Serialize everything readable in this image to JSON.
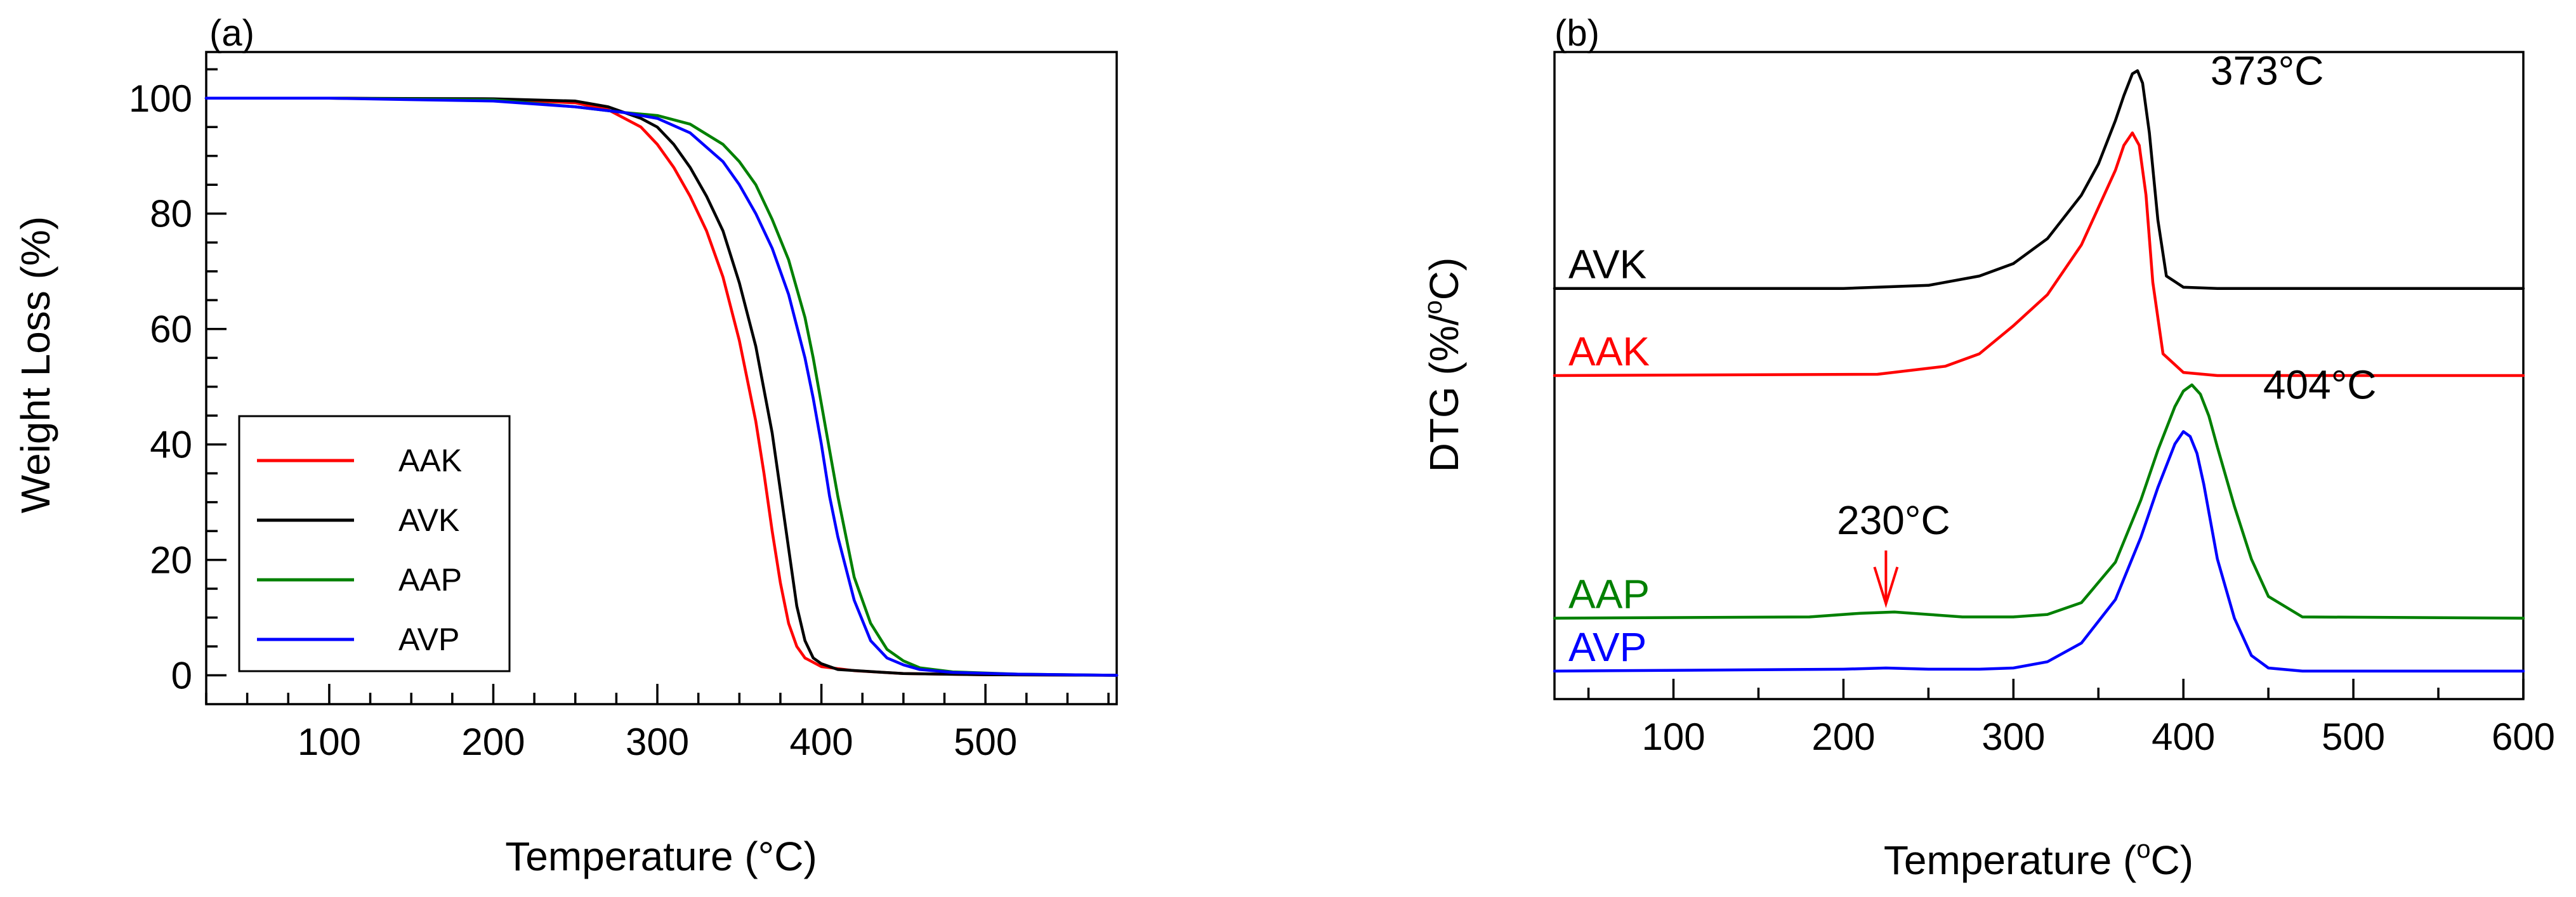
{
  "chart_data": [
    {
      "id": "a",
      "type": "line",
      "panel_label": "(a)",
      "xlabel": "Temperature (°C)",
      "ylabel": "Weight Loss (%)",
      "xlim": [
        25,
        580
      ],
      "ylim": [
        -5,
        108
      ],
      "xticks": [
        100,
        200,
        300,
        400,
        500
      ],
      "yticks": [
        0,
        20,
        40,
        60,
        80,
        100
      ],
      "legend_position": "lower-left",
      "series": [
        {
          "name": "AAK",
          "color": "#ff0000",
          "x": [
            25,
            100,
            200,
            250,
            270,
            290,
            300,
            310,
            320,
            330,
            340,
            350,
            360,
            365,
            370,
            375,
            380,
            385,
            390,
            400,
            420,
            450,
            500,
            580
          ],
          "y": [
            100,
            100,
            99.8,
            99.2,
            98,
            95,
            92,
            88,
            83,
            77,
            69,
            58,
            44,
            35,
            25,
            16,
            9,
            5,
            3,
            1.5,
            0.8,
            0.3,
            0.1,
            0
          ]
        },
        {
          "name": "AVK",
          "color": "#000000",
          "x": [
            25,
            100,
            200,
            250,
            270,
            290,
            300,
            310,
            320,
            330,
            340,
            350,
            360,
            370,
            375,
            380,
            385,
            390,
            395,
            400,
            410,
            450,
            500,
            580
          ],
          "y": [
            100,
            100,
            99.9,
            99.5,
            98.5,
            96.5,
            95,
            92,
            88,
            83,
            77,
            68,
            57,
            42,
            32,
            22,
            12,
            6,
            3,
            2,
            1,
            0.3,
            0.1,
            0
          ]
        },
        {
          "name": "AAP",
          "color": "#008000",
          "x": [
            25,
            100,
            200,
            250,
            280,
            300,
            320,
            340,
            350,
            360,
            370,
            380,
            390,
            395,
            400,
            405,
            410,
            415,
            420,
            430,
            440,
            450,
            460,
            480,
            520,
            580
          ],
          "y": [
            100,
            100,
            99.7,
            98.5,
            97.5,
            97,
            95.5,
            92,
            89,
            85,
            79,
            72,
            62,
            55,
            47,
            39,
            31,
            24,
            17,
            9,
            4.5,
            2.5,
            1.3,
            0.6,
            0.2,
            0
          ]
        },
        {
          "name": "AVP",
          "color": "#0000ff",
          "x": [
            25,
            100,
            200,
            250,
            280,
            300,
            320,
            340,
            350,
            360,
            370,
            380,
            390,
            395,
            400,
            405,
            410,
            420,
            430,
            440,
            450,
            460,
            480,
            520,
            580
          ],
          "y": [
            100,
            100,
            99.5,
            98.5,
            97.5,
            96.5,
            94,
            89,
            85,
            80,
            74,
            66,
            55,
            48,
            40,
            31,
            24,
            13,
            6,
            3,
            1.8,
            1,
            0.5,
            0.2,
            0
          ]
        }
      ]
    },
    {
      "id": "b",
      "type": "line",
      "panel_label": "(b)",
      "xlabel": "Temperature (",
      "xlabel_sup": "o",
      "xlabel_end": "C)",
      "ylabel": "DTG (%/",
      "ylabel_sup": "o",
      "ylabel_end": "C)",
      "xlim": [
        30,
        600
      ],
      "ylim": [
        -0.5,
        9.9
      ],
      "y_tick_labels_shown": false,
      "xticks": [
        100,
        200,
        300,
        400,
        500,
        600
      ],
      "series": [
        {
          "name": "AVK",
          "label": "AVK",
          "color": "#000000",
          "x": [
            30,
            200,
            250,
            280,
            300,
            320,
            340,
            350,
            360,
            365,
            370,
            373,
            376,
            380,
            385,
            390,
            400,
            420,
            600
          ],
          "y": [
            6.1,
            6.1,
            6.15,
            6.3,
            6.5,
            6.9,
            7.6,
            8.1,
            8.8,
            9.2,
            9.55,
            9.6,
            9.4,
            8.6,
            7.2,
            6.3,
            6.12,
            6.1,
            6.1
          ]
        },
        {
          "name": "AAK",
          "label": "AAK",
          "color": "#ff0000",
          "x": [
            30,
            220,
            260,
            280,
            300,
            320,
            340,
            350,
            360,
            365,
            370,
            374,
            378,
            382,
            388,
            400,
            420,
            600
          ],
          "y": [
            4.7,
            4.72,
            4.85,
            5.05,
            5.5,
            6.0,
            6.8,
            7.4,
            8.0,
            8.4,
            8.6,
            8.4,
            7.6,
            6.2,
            5.05,
            4.75,
            4.7,
            4.7
          ]
        },
        {
          "name": "AAP",
          "label": "AAP",
          "color": "#008000",
          "x": [
            30,
            180,
            210,
            230,
            250,
            270,
            300,
            320,
            340,
            360,
            375,
            385,
            395,
            400,
            405,
            410,
            415,
            420,
            430,
            440,
            450,
            470,
            600
          ],
          "y": [
            0.8,
            0.82,
            0.88,
            0.9,
            0.86,
            0.82,
            0.82,
            0.86,
            1.05,
            1.7,
            2.7,
            3.5,
            4.2,
            4.45,
            4.55,
            4.4,
            4.05,
            3.55,
            2.6,
            1.75,
            1.15,
            0.82,
            0.8
          ]
        },
        {
          "name": "AVP",
          "label": "AVP",
          "color": "#0000ff",
          "x": [
            30,
            200,
            225,
            250,
            280,
            300,
            320,
            340,
            360,
            375,
            385,
            395,
            400,
            404,
            408,
            412,
            416,
            420,
            430,
            440,
            450,
            470,
            600
          ],
          "y": [
            -0.05,
            -0.02,
            0.0,
            -0.02,
            -0.02,
            0.0,
            0.1,
            0.4,
            1.1,
            2.1,
            2.9,
            3.6,
            3.8,
            3.72,
            3.45,
            2.95,
            2.35,
            1.75,
            0.8,
            0.2,
            0.0,
            -0.05,
            -0.05
          ]
        }
      ],
      "annotations": [
        {
          "text": "373°C",
          "x": 373,
          "y": 9.6
        },
        {
          "text": "404°C",
          "x": 404,
          "y": 4.55
        },
        {
          "text": "230°C",
          "x": 225,
          "y": 0.95,
          "arrow": true,
          "arrow_color": "#ff0000"
        }
      ]
    }
  ]
}
